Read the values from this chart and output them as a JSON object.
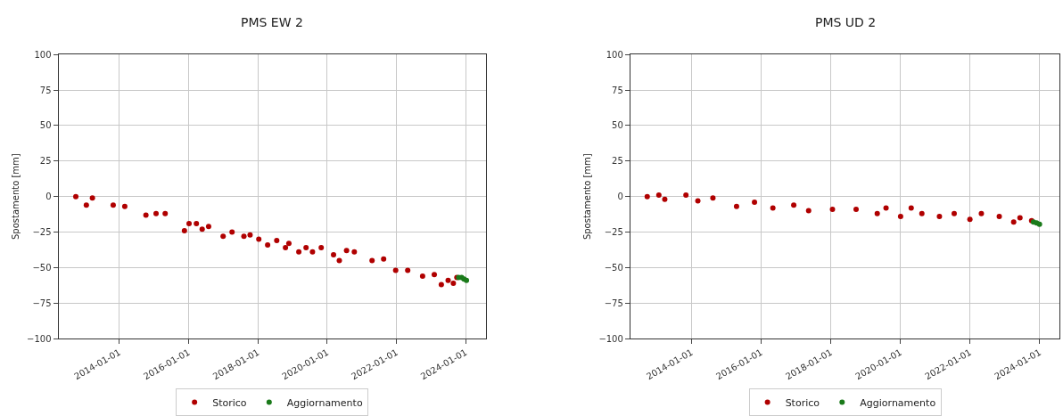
{
  "chart_data": [
    {
      "type": "scatter",
      "title": "PMS EW 2",
      "ylabel": "Spostamento [mm]",
      "xlim": [
        "2012-04-01",
        "2024-08-01"
      ],
      "xticks": [
        "2014-01-01",
        "2016-01-01",
        "2018-01-01",
        "2020-01-01",
        "2022-01-01",
        "2024-01-01"
      ],
      "ylim": [
        -100,
        100
      ],
      "yticks": [
        -100,
        -75,
        -50,
        -25,
        0,
        25,
        50,
        75,
        100
      ],
      "grid": true,
      "legend": "bottom",
      "marker": "circle",
      "series": [
        {
          "name": "Storico",
          "color": "#b00000",
          "x": [
            "2012-10-01",
            "2013-01-20",
            "2013-03-25",
            "2013-10-30",
            "2014-03-01",
            "2014-10-10",
            "2015-01-25",
            "2015-05-01",
            "2015-11-20",
            "2016-01-08",
            "2016-03-25",
            "2016-05-25",
            "2016-08-01",
            "2017-01-01",
            "2017-04-05",
            "2017-08-08",
            "2017-10-12",
            "2018-01-12",
            "2018-04-15",
            "2018-07-20",
            "2018-10-20",
            "2018-11-25",
            "2019-03-10",
            "2019-05-25",
            "2019-08-01",
            "2019-11-01",
            "2020-03-10",
            "2020-05-10",
            "2020-07-25",
            "2020-10-15",
            "2021-04-20",
            "2021-08-20",
            "2021-12-25",
            "2022-05-01",
            "2022-10-05",
            "2023-02-05",
            "2023-04-20",
            "2023-07-01",
            "2023-08-25",
            "2023-10-01"
          ],
          "values": [
            0,
            -6,
            -1,
            -6,
            -7,
            -13,
            -12,
            -12,
            -24,
            -19,
            -19,
            -23,
            -21,
            -28,
            -25,
            -28,
            -27,
            -30,
            -34,
            -31,
            -36,
            -33,
            -39,
            -36,
            -39,
            -36,
            -41,
            -45,
            -38,
            -39,
            -45,
            -44,
            -52,
            -52,
            -56,
            -55,
            -62,
            -59,
            -61,
            -57
          ]
        },
        {
          "name": "Aggiornamento",
          "color": "#1a7a1a",
          "x": [
            "2023-10-20",
            "2023-11-20",
            "2023-12-15",
            "2024-01-10"
          ],
          "values": [
            -57,
            -57,
            -58,
            -59
          ]
        }
      ]
    },
    {
      "type": "scatter",
      "title": "PMS UD 2",
      "ylabel": "Spostamento [mm]",
      "xlim": [
        "2012-04-01",
        "2024-08-01"
      ],
      "xticks": [
        "2014-01-01",
        "2016-01-01",
        "2018-01-01",
        "2020-01-01",
        "2022-01-01",
        "2024-01-01"
      ],
      "ylim": [
        -100,
        100
      ],
      "yticks": [
        -100,
        -75,
        -50,
        -25,
        0,
        25,
        50,
        75,
        100
      ],
      "grid": true,
      "legend": "bottom",
      "marker": "circle",
      "series": [
        {
          "name": "Storico",
          "color": "#b00000",
          "x": [
            "2012-09-25",
            "2013-01-25",
            "2013-03-28",
            "2013-11-05",
            "2014-03-10",
            "2014-08-15",
            "2015-04-20",
            "2015-10-25",
            "2016-05-05",
            "2016-12-10",
            "2017-05-15",
            "2018-01-20",
            "2018-09-25",
            "2019-05-05",
            "2019-08-05",
            "2020-01-05",
            "2020-04-25",
            "2020-08-15",
            "2021-02-15",
            "2021-07-20",
            "2022-01-01",
            "2022-05-01",
            "2022-11-05",
            "2023-04-05",
            "2023-06-10",
            "2023-10-10"
          ],
          "values": [
            0,
            1,
            -2,
            1,
            -3,
            -1,
            -7,
            -4,
            -8,
            -6,
            -10,
            -9,
            -9,
            -12,
            -8,
            -14,
            -8,
            -12,
            -14,
            -12,
            -16,
            -12,
            -14,
            -18,
            -15,
            -17
          ]
        },
        {
          "name": "Aggiornamento",
          "color": "#1a7a1a",
          "x": [
            "2023-10-30",
            "2023-12-01",
            "2024-01-01"
          ],
          "values": [
            -18,
            -18.5,
            -19.5
          ]
        }
      ]
    }
  ]
}
